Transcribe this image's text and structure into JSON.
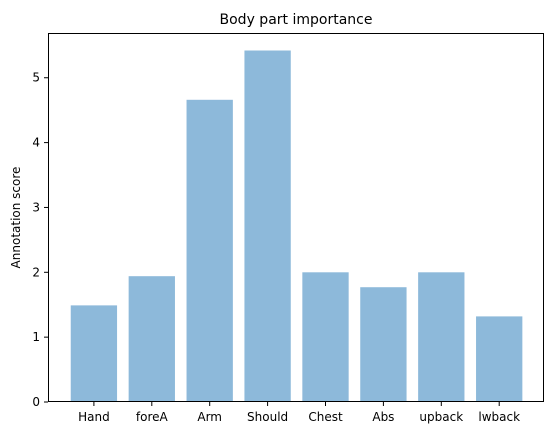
{
  "chart_data": {
    "type": "bar",
    "title": "Body part importance",
    "xlabel": "",
    "ylabel": "Annotation score",
    "categories": [
      "Hand",
      "foreA",
      "Arm",
      "Should",
      "Chest",
      "Abs",
      "upback",
      "lwback"
    ],
    "values": [
      1.49,
      1.94,
      4.66,
      5.42,
      2.0,
      1.77,
      2.0,
      1.32
    ],
    "ylim": [
      0,
      5.69
    ],
    "yticks": [
      "0",
      "1",
      "2",
      "3",
      "4",
      "5"
    ],
    "bar_color": "#8db9da",
    "grid": false
  }
}
